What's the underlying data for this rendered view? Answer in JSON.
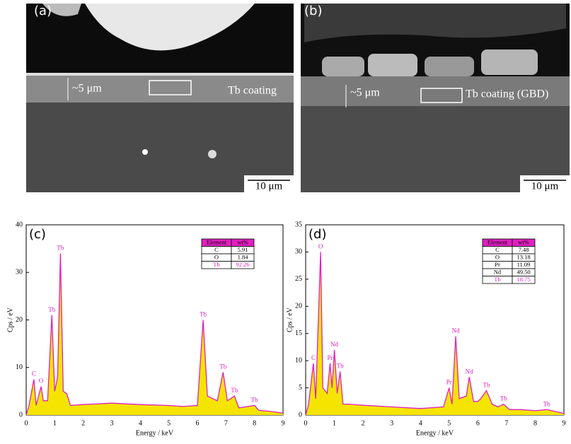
{
  "images": [
    {
      "label": "(a)",
      "thickness": "~5 μm",
      "coating": "Tb coating",
      "scale": "10 μm"
    },
    {
      "label": "(b)",
      "thickness": "~5 μm",
      "coating": "Tb coating (GBD)",
      "scale": "10 μm"
    }
  ],
  "chart_data": [
    {
      "type": "line",
      "label": "(c)",
      "xlabel": "Energy / keV",
      "ylabel": "Cps / eV",
      "color": "#e020c0",
      "fill_color": "#f5e400",
      "xlim": [
        0,
        9
      ],
      "ylim": [
        0,
        40
      ],
      "xticks": [
        0,
        1,
        2,
        3,
        4,
        5,
        6,
        7,
        8,
        9
      ],
      "yticks": [
        0,
        10,
        20,
        30,
        40
      ],
      "x": [
        0,
        0.1,
        0.27,
        0.35,
        0.52,
        0.6,
        0.75,
        0.9,
        1.0,
        1.1,
        1.2,
        1.3,
        1.42,
        1.55,
        2,
        3,
        4,
        5,
        5.5,
        6,
        6.2,
        6.35,
        6.7,
        6.9,
        7.05,
        7.3,
        7.45,
        8.0,
        8.15,
        8.5,
        9
      ],
      "values": [
        0,
        2,
        7.5,
        2,
        6,
        3,
        3,
        21,
        5,
        8,
        34,
        5,
        4.5,
        2,
        2.2,
        2.5,
        2.2,
        2,
        1.8,
        2,
        20,
        4,
        3,
        9,
        3,
        4,
        1.5,
        2,
        1,
        0.8,
        0.4
      ],
      "annotations": [
        {
          "text": "C",
          "x": 0.27
        },
        {
          "text": "O",
          "x": 0.52
        },
        {
          "text": "Tb",
          "x": 0.9
        },
        {
          "text": "Tb",
          "x": 1.2
        },
        {
          "text": "Tb",
          "x": 6.2
        },
        {
          "text": "Tb",
          "x": 6.9
        },
        {
          "text": "Tb",
          "x": 7.3
        },
        {
          "text": "Tb",
          "x": 8.0
        }
      ],
      "table": {
        "header": [
          "Element",
          "wt%"
        ],
        "rows": [
          [
            "C",
            "5.91"
          ],
          [
            "O",
            "1.84"
          ],
          [
            "Tb",
            "92.26"
          ]
        ]
      }
    },
    {
      "type": "line",
      "label": "(d)",
      "xlabel": "Energy / keV",
      "ylabel": "Cps / eV",
      "color": "#e020c0",
      "fill_color": "#f5e400",
      "xlim": [
        0,
        9
      ],
      "ylim": [
        0,
        35
      ],
      "xticks": [
        0,
        1,
        2,
        3,
        4,
        5,
        6,
        7,
        8,
        9
      ],
      "yticks": [
        0,
        5,
        10,
        15,
        20,
        25,
        30,
        35
      ],
      "x": [
        0,
        0.1,
        0.27,
        0.35,
        0.52,
        0.6,
        0.75,
        0.85,
        0.92,
        1.0,
        1.1,
        1.2,
        1.3,
        1.5,
        2,
        3,
        4,
        4.8,
        5.0,
        5.1,
        5.23,
        5.35,
        5.6,
        5.7,
        5.85,
        6.0,
        6.1,
        6.3,
        6.5,
        6.7,
        6.9,
        7.1,
        7.5,
        8,
        8.4,
        9
      ],
      "values": [
        0,
        2,
        9.5,
        3,
        30,
        5,
        4,
        9.5,
        5,
        12,
        4,
        8,
        2,
        2,
        1.8,
        1.5,
        1.2,
        1.5,
        5,
        2,
        14.5,
        3,
        3.5,
        7,
        2.5,
        2.5,
        3,
        4.5,
        2,
        1.5,
        2,
        1,
        1,
        0.8,
        1,
        0.3
      ],
      "annotations": [
        {
          "text": "C",
          "x": 0.27
        },
        {
          "text": "O",
          "x": 0.52
        },
        {
          "text": "Pr",
          "x": 0.85
        },
        {
          "text": "Nd",
          "x": 1.0
        },
        {
          "text": "Tb",
          "x": 1.2
        },
        {
          "text": "Pr",
          "x": 5.0
        },
        {
          "text": "Nd",
          "x": 5.23
        },
        {
          "text": "Nd",
          "x": 5.7
        },
        {
          "text": "Tb",
          "x": 6.3
        },
        {
          "text": "Tb",
          "x": 6.9
        },
        {
          "text": "Tb",
          "x": 8.4
        }
      ],
      "table": {
        "header": [
          "Element",
          "wt%"
        ],
        "rows": [
          [
            "C",
            "7.48"
          ],
          [
            "O",
            "13.18"
          ],
          [
            "Pr",
            "11.09"
          ],
          [
            "Nd",
            "49.50"
          ],
          [
            "Tb",
            "18.75"
          ]
        ]
      }
    }
  ]
}
